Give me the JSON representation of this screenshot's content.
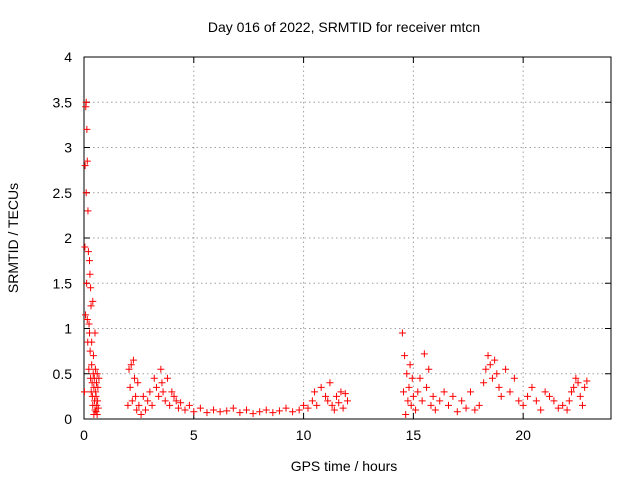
{
  "chart_data": {
    "type": "scatter",
    "title": "Day 016 of 2022, SRMTID for receiver mtcn",
    "xlabel": "GPS time / hours",
    "ylabel": "SRMTID / TECUs",
    "xlim": [
      0,
      24
    ],
    "ylim": [
      0,
      4
    ],
    "xticks": [
      0,
      5,
      10,
      15,
      20
    ],
    "xtick_labels": [
      "0",
      "5",
      "10",
      "15",
      "20"
    ],
    "yticks": [
      0,
      0.5,
      1,
      1.5,
      2,
      2.5,
      3,
      3.5,
      4
    ],
    "ytick_labels": [
      "0",
      "0.5",
      "1",
      "1.5",
      "2",
      "2.5",
      "3",
      "3.5",
      "4"
    ],
    "grid": true,
    "marker": "+",
    "series": [
      {
        "name": "SRMTID",
        "color": "#ff0000",
        "x": [
          0.02,
          0.04,
          0.05,
          0.07,
          0.08,
          0.1,
          0.1,
          0.12,
          0.13,
          0.15,
          0.15,
          0.17,
          0.18,
          0.2,
          0.22,
          0.23,
          0.25,
          0.25,
          0.27,
          0.28,
          0.3,
          0.3,
          0.32,
          0.33,
          0.35,
          0.35,
          0.37,
          0.38,
          0.4,
          0.4,
          0.42,
          0.43,
          0.45,
          0.45,
          0.47,
          0.48,
          0.5,
          0.5,
          0.52,
          0.53,
          0.55,
          0.55,
          0.57,
          0.58,
          0.6,
          0.6,
          0.62,
          0.63,
          0.65,
          0.68,
          2.0,
          2.05,
          2.1,
          2.15,
          2.2,
          2.25,
          2.3,
          2.35,
          2.4,
          2.45,
          2.5,
          2.6,
          2.7,
          2.8,
          2.9,
          3.0,
          3.1,
          3.2,
          3.3,
          3.4,
          3.5,
          3.55,
          3.6,
          3.7,
          3.8,
          3.9,
          4.0,
          4.1,
          4.2,
          4.3,
          4.4,
          4.6,
          4.8,
          5.0,
          5.3,
          5.6,
          5.9,
          6.2,
          6.5,
          6.8,
          7.1,
          7.4,
          7.7,
          8.0,
          8.3,
          8.6,
          8.9,
          9.2,
          9.5,
          9.8,
          10.0,
          10.2,
          10.4,
          10.5,
          10.6,
          10.8,
          11.0,
          11.1,
          11.2,
          11.3,
          11.4,
          11.5,
          11.6,
          11.7,
          11.8,
          11.9,
          12.0,
          14.5,
          14.55,
          14.6,
          14.65,
          14.7,
          14.75,
          14.8,
          14.85,
          14.9,
          14.95,
          15.0,
          15.1,
          15.2,
          15.3,
          15.4,
          15.5,
          15.6,
          15.7,
          15.8,
          15.9,
          16.0,
          16.2,
          16.4,
          16.6,
          16.8,
          17.0,
          17.2,
          17.4,
          17.6,
          17.8,
          18.0,
          18.2,
          18.3,
          18.4,
          18.5,
          18.6,
          18.7,
          18.8,
          18.9,
          19.0,
          19.2,
          19.4,
          19.6,
          19.8,
          20.0,
          20.2,
          20.4,
          20.6,
          20.8,
          21.0,
          21.2,
          21.4,
          21.6,
          21.8,
          22.0,
          22.1,
          22.2,
          22.3,
          22.4,
          22.5,
          22.6,
          22.7,
          22.8,
          22.9
        ],
        "y": [
          0.3,
          1.9,
          2.8,
          1.15,
          3.45,
          2.5,
          3.5,
          1.5,
          3.2,
          1.1,
          2.85,
          0.85,
          2.3,
          1.85,
          0.55,
          1.05,
          1.75,
          0.95,
          1.6,
          0.75,
          1.45,
          0.45,
          1.25,
          0.3,
          0.85,
          0.6,
          0.4,
          0.25,
          1.3,
          0.15,
          0.5,
          0.7,
          0.05,
          0.35,
          0.45,
          0.2,
          0.95,
          0.1,
          0.55,
          0.3,
          0.08,
          0.25,
          0.4,
          0.15,
          0.05,
          0.5,
          0.2,
          0.35,
          0.12,
          0.45,
          0.15,
          0.55,
          0.35,
          0.6,
          0.2,
          0.65,
          0.45,
          0.25,
          0.1,
          0.4,
          0.15,
          0.05,
          0.25,
          0.1,
          0.2,
          0.3,
          0.15,
          0.45,
          0.35,
          0.25,
          0.55,
          0.4,
          0.3,
          0.2,
          0.45,
          0.15,
          0.3,
          0.25,
          0.2,
          0.12,
          0.18,
          0.1,
          0.15,
          0.08,
          0.12,
          0.07,
          0.1,
          0.08,
          0.09,
          0.12,
          0.07,
          0.1,
          0.06,
          0.08,
          0.1,
          0.07,
          0.09,
          0.12,
          0.08,
          0.1,
          0.15,
          0.12,
          0.2,
          0.3,
          0.15,
          0.35,
          0.25,
          0.2,
          0.4,
          0.15,
          0.1,
          0.25,
          0.18,
          0.3,
          0.12,
          0.28,
          0.2,
          0.95,
          0.3,
          0.7,
          0.05,
          0.5,
          0.2,
          0.35,
          0.6,
          0.15,
          0.45,
          0.25,
          0.1,
          0.3,
          0.45,
          0.2,
          0.72,
          0.35,
          0.55,
          0.15,
          0.25,
          0.1,
          0.2,
          0.3,
          0.15,
          0.25,
          0.08,
          0.2,
          0.12,
          0.3,
          0.1,
          0.15,
          0.4,
          0.55,
          0.7,
          0.6,
          0.45,
          0.65,
          0.5,
          0.35,
          0.25,
          0.55,
          0.3,
          0.45,
          0.2,
          0.15,
          0.25,
          0.35,
          0.2,
          0.1,
          0.3,
          0.25,
          0.2,
          0.12,
          0.15,
          0.1,
          0.2,
          0.3,
          0.35,
          0.45,
          0.4,
          0.25,
          0.15,
          0.35,
          0.42
        ]
      }
    ]
  }
}
